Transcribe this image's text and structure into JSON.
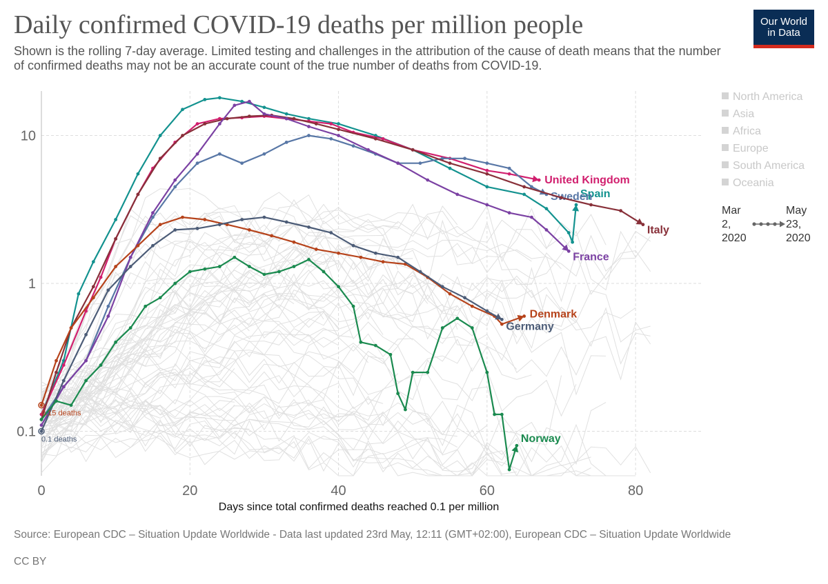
{
  "header": {
    "title": "Daily confirmed COVID-19 deaths per million people",
    "subtitle": "Shown is the rolling 7-day average. Limited testing and challenges in the attribution of the cause of death means that the number of confirmed deaths may not be an accurate count of the true number of deaths from COVID-19.",
    "logo_line1": "Our World",
    "logo_line2": "in Data"
  },
  "legend": {
    "regions": [
      "North America",
      "Asia",
      "Africa",
      "Europe",
      "South America",
      "Oceania"
    ],
    "timeline": {
      "start_month": "Mar",
      "start_day": "2,",
      "start_year": "2020",
      "end_month": "May",
      "end_day": "23,",
      "end_year": "2020"
    }
  },
  "footer": {
    "source": "Source: European CDC – Situation Update Worldwide - Data last updated 23rd May, 12:11 (GMT+02:00), European CDC – Situation Update Worldwide",
    "license": "CC BY"
  },
  "colors": {
    "United Kingdom": "#d11f6e",
    "Spain": "#13928f",
    "Sweden": "#5877a6",
    "Italy": "#883039",
    "France": "#7b41a3",
    "Denmark": "#b6431b",
    "Germany": "#4c5c77",
    "Norway": "#1a8a4f",
    "background_lines": "#dddddd",
    "grid": "#dddddd",
    "axis_text": "#666666"
  },
  "chart_data": {
    "type": "line",
    "title": "Daily confirmed COVID-19 deaths per million people",
    "xlabel": "Days since total confirmed deaths reached 0.1 per million",
    "ylabel": "",
    "xlim": [
      0,
      89
    ],
    "ylim": [
      0.05,
      20
    ],
    "yscale": "log",
    "x_ticks": [
      0,
      20,
      40,
      60,
      80
    ],
    "y_ticks": [
      0.1,
      1,
      10
    ],
    "y_tick_labels": [
      "0.1",
      "1",
      "10"
    ],
    "grid": true,
    "legend_position": "right",
    "start_annotations": [
      {
        "text": "0.15 deaths",
        "x": 0,
        "y": 0.15,
        "series": "Denmark"
      },
      {
        "text": "0.1 deaths",
        "x": 0,
        "y": 0.1,
        "series": "Germany"
      }
    ],
    "series": [
      {
        "name": "Spain",
        "points": [
          [
            0,
            0.13
          ],
          [
            3,
            0.3
          ],
          [
            5,
            0.85
          ],
          [
            7,
            1.4
          ],
          [
            10,
            2.7
          ],
          [
            13,
            5.5
          ],
          [
            16,
            10
          ],
          [
            19,
            15
          ],
          [
            22,
            17.5
          ],
          [
            24,
            18
          ],
          [
            27,
            17
          ],
          [
            30,
            15.5
          ],
          [
            33,
            14
          ],
          [
            36,
            13
          ],
          [
            40,
            12
          ],
          [
            45,
            10
          ],
          [
            50,
            8
          ],
          [
            55,
            6
          ],
          [
            60,
            4.5
          ],
          [
            65,
            4
          ],
          [
            68,
            3.2
          ],
          [
            71,
            2.2
          ],
          [
            71.5,
            1.9
          ],
          [
            72,
            3.4
          ]
        ],
        "end_label": "Spain"
      },
      {
        "name": "United Kingdom",
        "points": [
          [
            0,
            0.13
          ],
          [
            3,
            0.28
          ],
          [
            6,
            0.65
          ],
          [
            8,
            1.1
          ],
          [
            10,
            2
          ],
          [
            13,
            4
          ],
          [
            15,
            6
          ],
          [
            18,
            9
          ],
          [
            21,
            12
          ],
          [
            24,
            13
          ],
          [
            27,
            13.2
          ],
          [
            30,
            13.5
          ],
          [
            33,
            13
          ],
          [
            36,
            12.5
          ],
          [
            39,
            12
          ],
          [
            42,
            10.5
          ],
          [
            46,
            9.5
          ],
          [
            50,
            8
          ],
          [
            55,
            7
          ],
          [
            60,
            5.8
          ],
          [
            63,
            5.5
          ],
          [
            67,
            5.0
          ]
        ],
        "end_label": "United Kingdom"
      },
      {
        "name": "Sweden",
        "points": [
          [
            0,
            0.12
          ],
          [
            3,
            0.2
          ],
          [
            6,
            0.3
          ],
          [
            9,
            0.7
          ],
          [
            12,
            1.5
          ],
          [
            15,
            2.8
          ],
          [
            18,
            4.5
          ],
          [
            21,
            6.5
          ],
          [
            24,
            7.5
          ],
          [
            27,
            6.5
          ],
          [
            30,
            7.5
          ],
          [
            33,
            9
          ],
          [
            36,
            10
          ],
          [
            39,
            9.5
          ],
          [
            42,
            8.5
          ],
          [
            45,
            7.5
          ],
          [
            48,
            6.5
          ],
          [
            51,
            6.5
          ],
          [
            54,
            7
          ],
          [
            57,
            7
          ],
          [
            60,
            6.5
          ],
          [
            63,
            6
          ],
          [
            66,
            4.5
          ],
          [
            68,
            4.0
          ]
        ],
        "end_label": "Sweden"
      },
      {
        "name": "Italy",
        "points": [
          [
            0,
            0.12
          ],
          [
            2,
            0.25
          ],
          [
            4,
            0.5
          ],
          [
            7,
            0.95
          ],
          [
            10,
            2
          ],
          [
            13,
            4
          ],
          [
            16,
            7
          ],
          [
            19,
            10
          ],
          [
            22,
            12
          ],
          [
            25,
            13
          ],
          [
            28,
            13.5
          ],
          [
            31,
            13.7
          ],
          [
            34,
            13
          ],
          [
            37,
            12
          ],
          [
            40,
            11
          ],
          [
            45,
            9.5
          ],
          [
            50,
            8
          ],
          [
            55,
            6.5
          ],
          [
            60,
            5.5
          ],
          [
            65,
            4.5
          ],
          [
            70,
            3.8
          ],
          [
            74,
            3.4
          ],
          [
            78,
            3.1
          ],
          [
            81,
            2.5
          ]
        ],
        "end_label": "Italy"
      },
      {
        "name": "France",
        "points": [
          [
            0,
            0.11
          ],
          [
            3,
            0.2
          ],
          [
            6,
            0.3
          ],
          [
            9,
            0.6
          ],
          [
            12,
            1.5
          ],
          [
            15,
            3
          ],
          [
            18,
            5
          ],
          [
            21,
            7.5
          ],
          [
            24,
            12
          ],
          [
            26,
            16
          ],
          [
            28,
            17
          ],
          [
            30,
            14
          ],
          [
            33,
            13
          ],
          [
            36,
            11.5
          ],
          [
            40,
            10
          ],
          [
            44,
            8
          ],
          [
            48,
            6.5
          ],
          [
            52,
            5
          ],
          [
            56,
            4
          ],
          [
            60,
            3.4
          ],
          [
            63,
            3
          ],
          [
            66,
            2.8
          ],
          [
            68,
            2.3
          ],
          [
            71,
            1.65
          ]
        ],
        "end_label": "France"
      },
      {
        "name": "Denmark",
        "points": [
          [
            0,
            0.15
          ],
          [
            2,
            0.3
          ],
          [
            4,
            0.5
          ],
          [
            7,
            0.8
          ],
          [
            10,
            1.3
          ],
          [
            13,
            1.8
          ],
          [
            16,
            2.5
          ],
          [
            19,
            2.8
          ],
          [
            22,
            2.7
          ],
          [
            25,
            2.5
          ],
          [
            28,
            2.3
          ],
          [
            31,
            2.1
          ],
          [
            34,
            1.9
          ],
          [
            37,
            1.7
          ],
          [
            40,
            1.6
          ],
          [
            43,
            1.5
          ],
          [
            46,
            1.4
          ],
          [
            49,
            1.35
          ],
          [
            52,
            1.1
          ],
          [
            55,
            0.85
          ],
          [
            58,
            0.7
          ],
          [
            61,
            0.6
          ],
          [
            62,
            0.53
          ],
          [
            65,
            0.6
          ]
        ],
        "end_label": "Denmark"
      },
      {
        "name": "Germany",
        "points": [
          [
            0,
            0.1
          ],
          [
            3,
            0.22
          ],
          [
            6,
            0.45
          ],
          [
            9,
            0.9
          ],
          [
            12,
            1.3
          ],
          [
            15,
            1.8
          ],
          [
            18,
            2.3
          ],
          [
            21,
            2.35
          ],
          [
            24,
            2.5
          ],
          [
            27,
            2.7
          ],
          [
            30,
            2.8
          ],
          [
            33,
            2.6
          ],
          [
            36,
            2.4
          ],
          [
            39,
            2.2
          ],
          [
            42,
            1.8
          ],
          [
            45,
            1.6
          ],
          [
            48,
            1.5
          ],
          [
            51,
            1.2
          ],
          [
            54,
            0.95
          ],
          [
            57,
            0.8
          ],
          [
            60,
            0.65
          ],
          [
            62,
            0.57
          ]
        ],
        "end_label": "Germany"
      },
      {
        "name": "Norway",
        "points": [
          [
            0,
            0.12
          ],
          [
            2,
            0.16
          ],
          [
            4,
            0.15
          ],
          [
            6,
            0.22
          ],
          [
            8,
            0.28
          ],
          [
            10,
            0.4
          ],
          [
            12,
            0.5
          ],
          [
            14,
            0.7
          ],
          [
            16,
            0.8
          ],
          [
            18,
            1.0
          ],
          [
            20,
            1.2
          ],
          [
            22,
            1.25
          ],
          [
            24,
            1.3
          ],
          [
            26,
            1.5
          ],
          [
            28,
            1.3
          ],
          [
            30,
            1.15
          ],
          [
            32,
            1.2
          ],
          [
            34,
            1.3
          ],
          [
            36,
            1.45
          ],
          [
            38,
            1.2
          ],
          [
            40,
            0.95
          ],
          [
            42,
            0.7
          ],
          [
            43,
            0.4
          ],
          [
            45,
            0.38
          ],
          [
            47,
            0.33
          ],
          [
            48,
            0.18
          ],
          [
            49,
            0.14
          ],
          [
            50,
            0.25
          ],
          [
            52,
            0.25
          ],
          [
            54,
            0.5
          ],
          [
            56,
            0.58
          ],
          [
            58,
            0.5
          ],
          [
            60,
            0.25
          ],
          [
            61,
            0.13
          ],
          [
            62,
            0.13
          ],
          [
            63,
            0.055
          ],
          [
            64,
            0.08
          ]
        ],
        "end_label": "Norway"
      }
    ]
  }
}
